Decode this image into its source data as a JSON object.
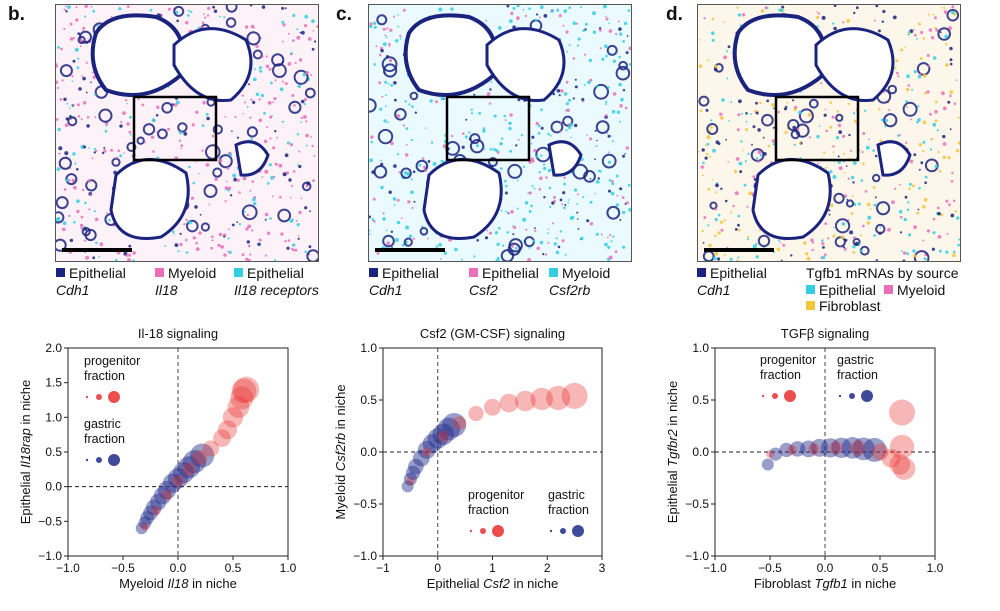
{
  "colors": {
    "epithelial": "#1a237e",
    "myeloid": "#ea6fb9",
    "cyan": "#33cfe0",
    "fibroblast": "#f3c63b",
    "point_gastric": "#1f2a8a",
    "point_progenitor": "#e8302e"
  },
  "panels": [
    {
      "letter": "b.",
      "legend": [
        {
          "swatch": "#1a237e",
          "label": "Epithelial",
          "sublabel": "Cdh1"
        },
        {
          "swatch": "#ea6fb9",
          "label": "Myeloid",
          "sublabel": "Il18"
        },
        {
          "swatch": "#33cfe0",
          "label": "Epithelial",
          "sublabel": "Il18 receptors"
        }
      ]
    },
    {
      "letter": "c.",
      "legend": [
        {
          "swatch": "#1a237e",
          "label": "Epithelial",
          "sublabel": "Cdh1"
        },
        {
          "swatch": "#ea6fb9",
          "label": "Epithelial",
          "sublabel": "Csf2"
        },
        {
          "swatch": "#33cfe0",
          "label": "Myeloid",
          "sublabel": "Csf2rb"
        }
      ]
    },
    {
      "letter": "d.",
      "legend": [
        {
          "swatch": "#1a237e",
          "label": "Epithelial",
          "sublabel": "Cdh1"
        },
        {
          "swatch": "",
          "label": "Tgfb1 mRNAs by source",
          "sublabel": ""
        },
        {
          "swatch": "#33cfe0",
          "label": "Epithelial",
          "sublabel": ""
        },
        {
          "swatch": "#ea6fb9",
          "label": "Myeloid",
          "sublabel": ""
        },
        {
          "swatch": "#f3c63b",
          "label": "Fibroblast",
          "sublabel": ""
        }
      ]
    }
  ],
  "chart_data": [
    {
      "type": "scatter",
      "title": "Il-18 signaling",
      "xlabel": "Myeloid Il18 in niche",
      "ylabel": "Epithelial Il18rap in niche",
      "xlim": [
        -1.0,
        1.0
      ],
      "ylim": [
        -1.0,
        2.0
      ],
      "xticks": [
        "-1.0",
        "-0.5",
        "0.0",
        "0.5",
        "1.0"
      ],
      "yticks": [
        "-1.0",
        "-0.5",
        "0.0",
        "0.5",
        "1.0",
        "1.5",
        "2.0"
      ],
      "legend_groups": [
        "progenitor fraction",
        "gastric fraction"
      ],
      "series": [
        {
          "name": "gastric",
          "x": [
            -0.33,
            -0.3,
            -0.28,
            -0.25,
            -0.22,
            -0.18,
            -0.14,
            -0.1,
            -0.05,
            0.0,
            0.05,
            0.1,
            0.15,
            0.22
          ],
          "y": [
            -0.6,
            -0.52,
            -0.45,
            -0.38,
            -0.3,
            -0.22,
            -0.13,
            -0.05,
            0.05,
            0.12,
            0.2,
            0.28,
            0.36,
            0.45
          ]
        },
        {
          "name": "progenitor",
          "x": [
            -0.3,
            -0.2,
            -0.1,
            0.0,
            0.1,
            0.2,
            0.3,
            0.4,
            0.45,
            0.5,
            0.55,
            0.58,
            0.6,
            0.62
          ],
          "y": [
            -0.58,
            -0.35,
            -0.12,
            0.08,
            0.25,
            0.42,
            0.55,
            0.7,
            0.82,
            1.0,
            1.15,
            1.28,
            1.38,
            1.4
          ]
        }
      ]
    },
    {
      "type": "scatter",
      "title": "Csf2 (GM-CSF) signaling",
      "xlabel": "Epithelial Csf2 in niche",
      "ylabel": "Myeloid Csf2rb in niche",
      "xlim": [
        -1,
        3
      ],
      "ylim": [
        -1.0,
        1.0
      ],
      "xticks": [
        "-1",
        "0",
        "1",
        "2",
        "3"
      ],
      "yticks": [
        "-1.0",
        "-0.5",
        "0.0",
        "0.5",
        "1.0"
      ],
      "legend_groups": [
        "progenitor fraction",
        "gastric fraction"
      ],
      "series": [
        {
          "name": "gastric",
          "x": [
            -0.55,
            -0.5,
            -0.45,
            -0.4,
            -0.3,
            -0.2,
            -0.1,
            0.0,
            0.1,
            0.2,
            0.3
          ],
          "y": [
            -0.33,
            -0.26,
            -0.2,
            -0.14,
            -0.06,
            0.02,
            0.08,
            0.13,
            0.17,
            0.22,
            0.26
          ]
        },
        {
          "name": "progenitor",
          "x": [
            -0.5,
            -0.2,
            0.1,
            0.4,
            0.7,
            1.0,
            1.3,
            1.6,
            1.9,
            2.2,
            2.5
          ],
          "y": [
            -0.28,
            0.0,
            0.15,
            0.28,
            0.37,
            0.43,
            0.47,
            0.49,
            0.51,
            0.52,
            0.54
          ]
        }
      ]
    },
    {
      "type": "scatter",
      "title": "TGFβ signaling",
      "xlabel": "Fibroblast Tgfb1 in niche",
      "ylabel": "Epithelial Tgfbr2 in niche",
      "xlim": [
        -1.0,
        1.0
      ],
      "ylim": [
        -1.0,
        1.0
      ],
      "xticks": [
        "-1.0",
        "-0.5",
        "0.0",
        "0.5",
        "1.0"
      ],
      "yticks": [
        "-1.0",
        "-0.5",
        "0.0",
        "0.5",
        "1.0"
      ],
      "legend_groups": [
        "progenitor fraction",
        "gastric fraction"
      ],
      "series": [
        {
          "name": "gastric",
          "x": [
            -0.52,
            -0.45,
            -0.35,
            -0.25,
            -0.15,
            -0.05,
            0.05,
            0.15,
            0.25,
            0.35,
            0.45
          ],
          "y": [
            -0.12,
            -0.02,
            0.02,
            0.03,
            0.03,
            0.04,
            0.04,
            0.04,
            0.04,
            0.03,
            0.02
          ]
        },
        {
          "name": "progenitor",
          "x": [
            -0.5,
            -0.3,
            -0.1,
            0.1,
            0.3,
            0.5,
            0.6,
            0.68,
            0.72,
            0.7,
            0.7
          ],
          "y": [
            -0.02,
            0.02,
            0.03,
            0.04,
            0.04,
            0.0,
            -0.06,
            -0.12,
            -0.16,
            0.05,
            0.38
          ]
        }
      ]
    }
  ]
}
